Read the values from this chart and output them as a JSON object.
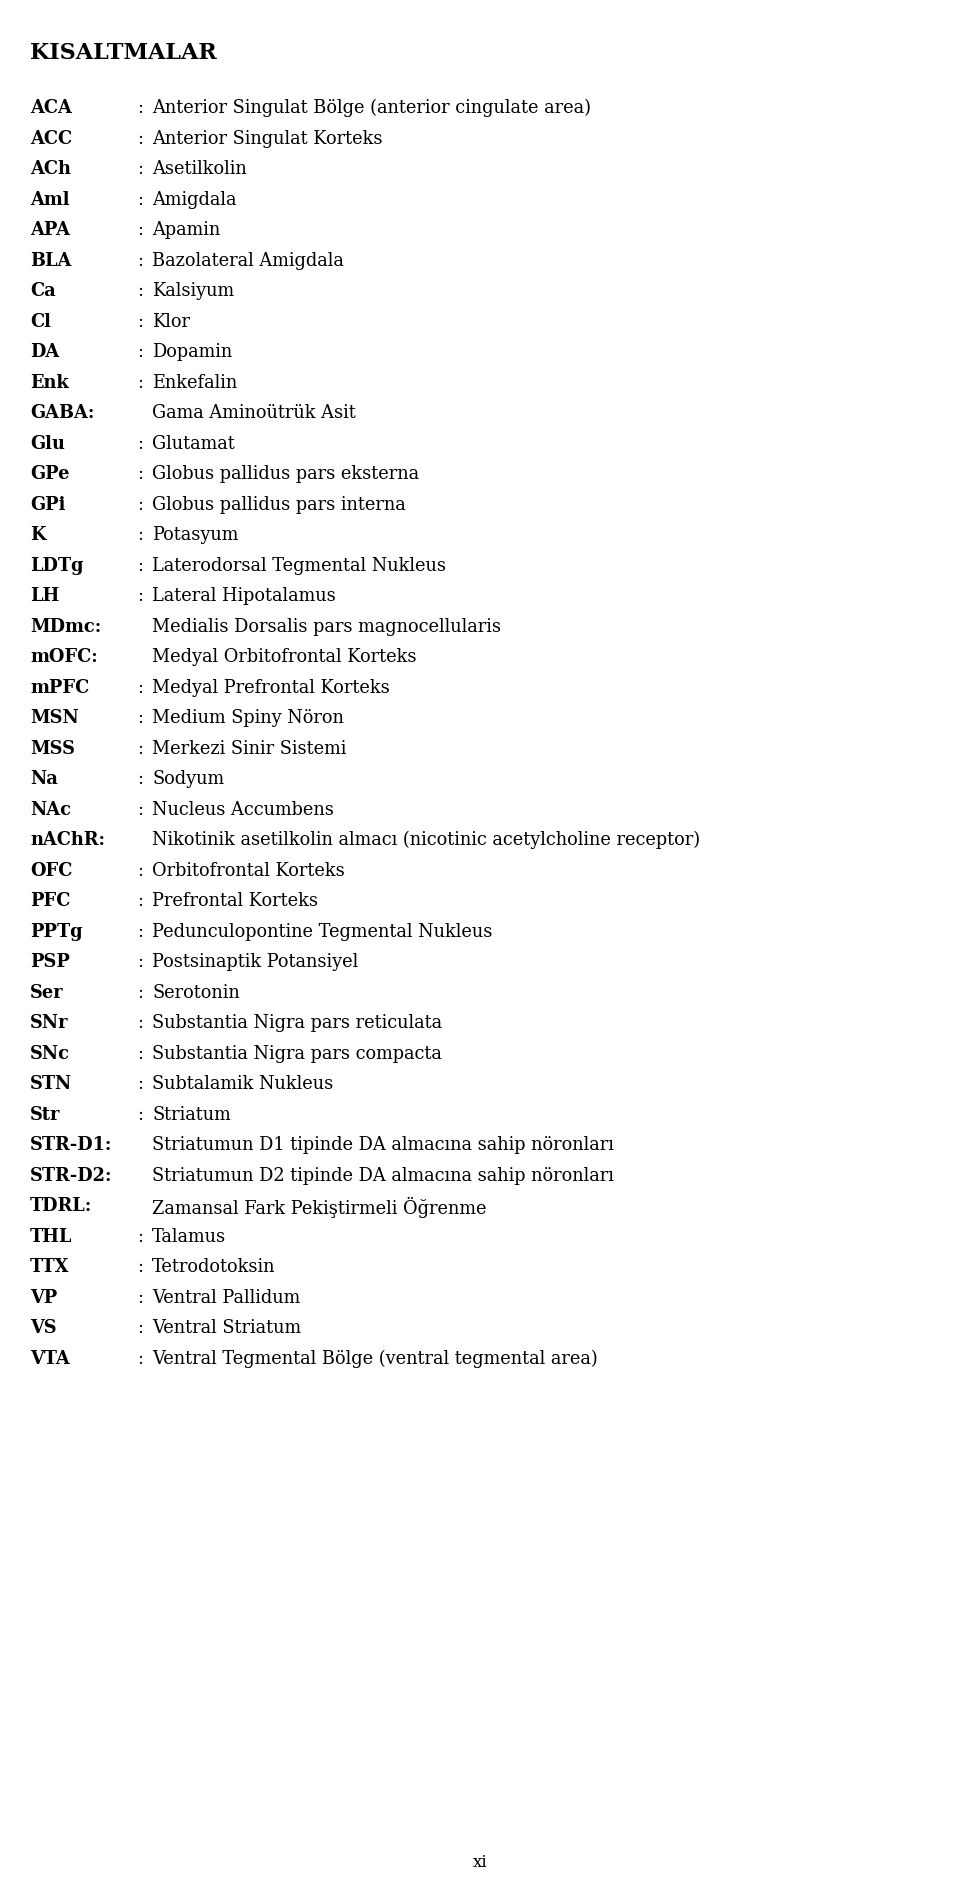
{
  "title": "KISALTMALAR",
  "entries": [
    {
      "abbr": "ACA",
      "desc": "Anterior Singulat Bölge (anterior cingulate area)"
    },
    {
      "abbr": "ACC",
      "desc": "Anterior Singulat Korteks"
    },
    {
      "abbr": "ACh",
      "desc": "Asetilkolin"
    },
    {
      "abbr": "Aml",
      "desc": "Amigdala"
    },
    {
      "abbr": "APA",
      "desc": "Apamin"
    },
    {
      "abbr": "BLA",
      "desc": "Bazolateral Amigdala"
    },
    {
      "abbr": "Ca",
      "desc": "Kalsiyum"
    },
    {
      "abbr": "Cl",
      "desc": "Klor"
    },
    {
      "abbr": "DA",
      "desc": "Dopamin"
    },
    {
      "abbr": "Enk",
      "desc": "Enkefalin"
    },
    {
      "abbr": "GABA",
      "desc": "Gama Aminoütrük Asit",
      "colon_attached": true
    },
    {
      "abbr": "Glu",
      "desc": "Glutamat"
    },
    {
      "abbr": "GPe",
      "desc": "Globus pallidus pars eksterna"
    },
    {
      "abbr": "GPi",
      "desc": "Globus pallidus pars interna"
    },
    {
      "abbr": "K",
      "desc": "Potasyum"
    },
    {
      "abbr": "LDTg",
      "desc": "Laterodorsal Tegmental Nukleus"
    },
    {
      "abbr": "LH",
      "desc": "Lateral Hipotalamus"
    },
    {
      "abbr": "MDmc",
      "desc": "Medialis Dorsalis pars magnocellularis",
      "colon_attached": true
    },
    {
      "abbr": "mOFC",
      "desc": "Medyal Orbitofrontal Korteks",
      "colon_attached": true
    },
    {
      "abbr": "mPFC",
      "desc": "Medyal Prefrontal Korteks"
    },
    {
      "abbr": "MSN",
      "desc": "Medium Spiny Nöron"
    },
    {
      "abbr": "MSS",
      "desc": "Merkezi Sinir Sistemi"
    },
    {
      "abbr": "Na",
      "desc": "Sodyum"
    },
    {
      "abbr": "NAc",
      "desc": "Nucleus Accumbens"
    },
    {
      "abbr": "nAChR",
      "desc": "Nikotinik asetilkolin almacı (nicotinic acetylcholine receptor)",
      "colon_attached": true
    },
    {
      "abbr": "OFC",
      "desc": "Orbitofrontal Korteks"
    },
    {
      "abbr": "PFC",
      "desc": "Prefrontal Korteks"
    },
    {
      "abbr": "PPTg",
      "desc": "Pedunculopontine Tegmental Nukleus"
    },
    {
      "abbr": "PSP",
      "desc": "Postsinaptik Potansiyel"
    },
    {
      "abbr": "Ser",
      "desc": "Serotonin"
    },
    {
      "abbr": "SNr",
      "desc": "Substantia Nigra pars reticulata"
    },
    {
      "abbr": "SNc",
      "desc": "Substantia Nigra pars compacta"
    },
    {
      "abbr": "STN",
      "desc": "Subtalamik Nukleus"
    },
    {
      "abbr": "Str",
      "desc": "Striatum"
    },
    {
      "abbr": "STR-D1",
      "desc": "Striatumun D1 tipinde DA almacına sahip nöronları",
      "colon_attached": true
    },
    {
      "abbr": "STR-D2",
      "desc": "Striatumun D2 tipinde DA almacına sahip nöronları",
      "colon_attached": true
    },
    {
      "abbr": "TDRL",
      "desc": "Zamansal Fark Pekiştirmeli Öğrenme",
      "colon_attached": true
    },
    {
      "abbr": "THL",
      "desc": "Talamus"
    },
    {
      "abbr": "TTX",
      "desc": "Tetrodotoksin"
    },
    {
      "abbr": "VP",
      "desc": "Ventral Pallidum"
    },
    {
      "abbr": "VS",
      "desc": "Ventral Striatum"
    },
    {
      "abbr": "VTA",
      "desc": "Ventral Tegmental Bölge (ventral tegmental area)"
    }
  ],
  "footer": "xi",
  "bg_color": "#ffffff",
  "text_color": "#000000",
  "title_fontsize": 16,
  "entry_fontsize": 12.8,
  "footer_fontsize": 12
}
